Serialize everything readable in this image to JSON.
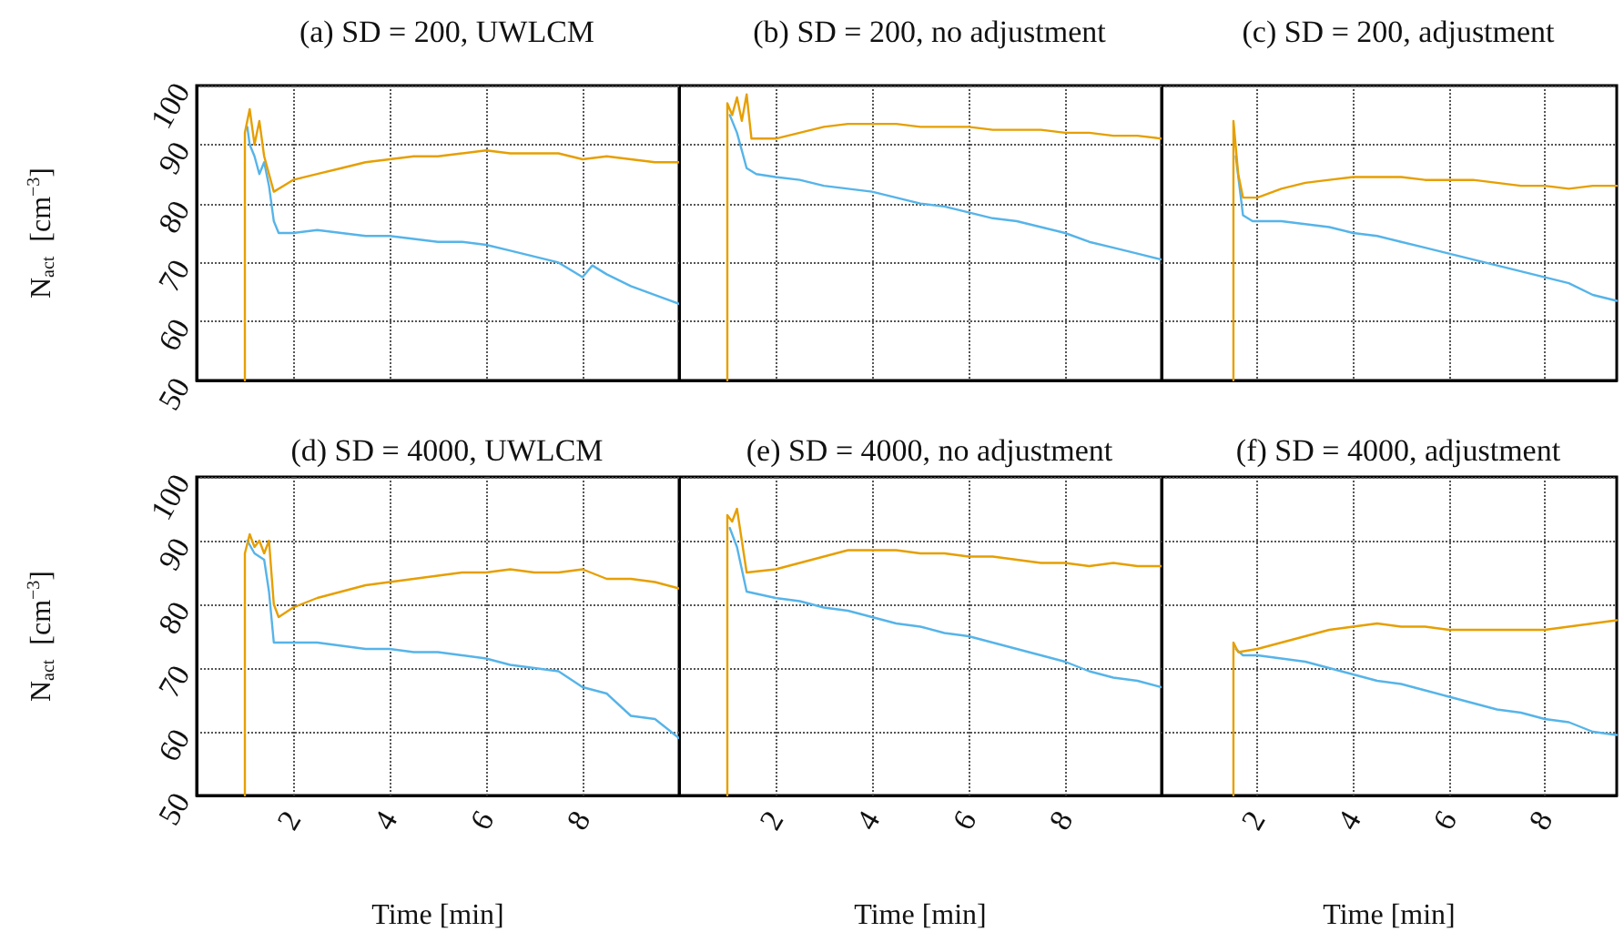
{
  "chart_data": [
    {
      "type": "line",
      "title": "(a) SD = 200, UWLCM",
      "ylabel": "N$_{act}$  [cm$^{−3}$]",
      "xlim": [
        0,
        10
      ],
      "ylim": [
        50,
        100
      ],
      "xticks": [
        2,
        4,
        6,
        8
      ],
      "yticks": [
        50,
        60,
        70,
        80,
        90,
        100
      ],
      "grid": true,
      "tick_labels": "y",
      "line_style": "solid",
      "series": [
        {
          "color": "#56b4e9",
          "x": [
            1.05,
            1.1,
            1.2,
            1.3,
            1.4,
            1.5,
            1.6,
            1.7,
            2,
            2.5,
            3,
            3.5,
            4,
            4.5,
            5,
            5.5,
            6,
            6.5,
            7,
            7.5,
            8,
            8.2,
            8.5,
            9,
            9.5,
            10
          ],
          "values": [
            93,
            90,
            88,
            85,
            87,
            83,
            77,
            75,
            75,
            75.5,
            75,
            74.5,
            74.5,
            74,
            73.5,
            73.5,
            73,
            72,
            71,
            70,
            67.5,
            69.5,
            68,
            66,
            64.5,
            63
          ]
        },
        {
          "color": "#e69f00",
          "x": [
            1.0,
            1.0,
            1.1,
            1.2,
            1.3,
            1.4,
            1.6,
            1.8,
            2,
            2.5,
            3,
            3.5,
            4,
            4.5,
            5,
            5.5,
            6,
            6.5,
            7,
            7.5,
            8,
            8.5,
            9,
            9.5,
            10
          ],
          "values": [
            50,
            92,
            96,
            90,
            94,
            88,
            82,
            83,
            84,
            85,
            86,
            87,
            87.5,
            88,
            88,
            88.5,
            89,
            88.5,
            88.5,
            88.5,
            87.5,
            88,
            87.5,
            87,
            87
          ]
        }
      ]
    },
    {
      "type": "line",
      "title": "(b) SD = 200, no adjustment",
      "xlim": [
        0,
        10
      ],
      "ylim": [
        50,
        100
      ],
      "xticks": [
        2,
        4,
        6,
        8
      ],
      "yticks": [
        50,
        60,
        70,
        80,
        90,
        100
      ],
      "grid": true,
      "tick_labels": false,
      "line_style": "solid",
      "series": [
        {
          "color": "#56b4e9",
          "x": [
            1.05,
            1.2,
            1.4,
            1.6,
            2,
            2.5,
            3,
            3.5,
            4,
            4.5,
            5,
            5.5,
            6,
            6.5,
            7,
            7.5,
            8,
            8.5,
            9,
            9.5,
            10
          ],
          "values": [
            95,
            92,
            86,
            85,
            84.5,
            84,
            83,
            82.5,
            82,
            81,
            80,
            79.5,
            78.5,
            77.5,
            77,
            76,
            75,
            73.5,
            72.5,
            71.5,
            70.5
          ]
        },
        {
          "color": "#e69f00",
          "x": [
            1.0,
            1.0,
            1.1,
            1.2,
            1.3,
            1.4,
            1.5,
            2,
            2.5,
            3,
            3.5,
            4,
            4.5,
            5,
            5.5,
            6,
            6.5,
            7,
            7.5,
            8,
            8.5,
            9,
            9.5,
            10
          ],
          "values": [
            50,
            97,
            95,
            98,
            94,
            98.5,
            91,
            91,
            92,
            93,
            93.5,
            93.5,
            93.5,
            93,
            93,
            93,
            92.5,
            92.5,
            92.5,
            92,
            92,
            91.5,
            91.5,
            91
          ]
        }
      ]
    },
    {
      "type": "line",
      "title": "(c) SD = 200, adjustment",
      "xlim": [
        0,
        9.5
      ],
      "ylim": [
        50,
        100
      ],
      "xticks": [
        2,
        4,
        6,
        8
      ],
      "yticks": [
        50,
        60,
        70,
        80,
        90,
        100
      ],
      "grid": true,
      "tick_labels": false,
      "line_style": "solid",
      "series": [
        {
          "color": "#56b4e9",
          "x": [
            1.55,
            1.7,
            1.9,
            2,
            2.5,
            3,
            3.5,
            4,
            4.5,
            5,
            5.5,
            6,
            6.5,
            7,
            7.5,
            8,
            8.5,
            9,
            9.5
          ],
          "values": [
            88,
            78,
            77,
            77,
            77,
            76.5,
            76,
            75,
            74.5,
            73.5,
            72.5,
            71.5,
            70.5,
            69.5,
            68.5,
            67.5,
            66.5,
            64.5,
            63.5
          ]
        },
        {
          "color": "#e69f00",
          "x": [
            1.5,
            1.5,
            1.6,
            1.7,
            2,
            2.5,
            3,
            3.5,
            4,
            4.5,
            5,
            5.5,
            6,
            6.5,
            7,
            7.5,
            8,
            8.5,
            9,
            9.5
          ],
          "values": [
            50,
            94,
            85,
            81,
            81,
            82.5,
            83.5,
            84,
            84.5,
            84.5,
            84.5,
            84,
            84,
            84,
            83.5,
            83,
            83,
            82.5,
            83,
            83
          ]
        }
      ]
    },
    {
      "type": "line",
      "title": "(d) SD = 4000, UWLCM",
      "xlabel": "Time [min]",
      "ylabel": "N$_{act}$  [cm$^{−3}$]",
      "xlim": [
        0,
        10
      ],
      "ylim": [
        50,
        100
      ],
      "xticks": [
        2,
        4,
        6,
        8
      ],
      "yticks": [
        50,
        60,
        70,
        80,
        90,
        100
      ],
      "grid": true,
      "line_style": "solid",
      "series": [
        {
          "color": "#56b4e9",
          "x": [
            1.05,
            1.2,
            1.4,
            1.5,
            1.6,
            2,
            2.5,
            3,
            3.5,
            4,
            4.5,
            5,
            5.5,
            6,
            6.5,
            7,
            7.5,
            8,
            8.5,
            9,
            9.5,
            10
          ],
          "values": [
            90,
            88,
            87,
            82,
            74,
            74,
            74,
            73.5,
            73,
            73,
            72.5,
            72.5,
            72,
            71.5,
            70.5,
            70,
            69.5,
            67,
            66,
            62.5,
            62,
            59
          ]
        },
        {
          "color": "#e69f00",
          "x": [
            1.0,
            1.0,
            1.1,
            1.2,
            1.3,
            1.4,
            1.5,
            1.6,
            1.7,
            2,
            2.5,
            3,
            3.5,
            4,
            4.5,
            5,
            5.5,
            6,
            6.5,
            7,
            7.5,
            8,
            8.5,
            9,
            9.5,
            10
          ],
          "values": [
            50,
            88,
            91,
            89,
            90,
            88,
            90,
            80,
            78,
            79.5,
            81,
            82,
            83,
            83.5,
            84,
            84.5,
            85,
            85,
            85.5,
            85,
            85,
            85.5,
            84,
            84,
            83.5,
            82.5
          ]
        }
      ]
    },
    {
      "type": "line",
      "title": "(e) SD = 4000, no adjustment",
      "xlabel": "Time [min]",
      "xlim": [
        0,
        10
      ],
      "ylim": [
        50,
        100
      ],
      "xticks": [
        2,
        4,
        6,
        8
      ],
      "yticks": [
        50,
        60,
        70,
        80,
        90,
        100
      ],
      "grid": true,
      "tick_labels": "x",
      "line_style": "solid",
      "series": [
        {
          "color": "#56b4e9",
          "x": [
            1.05,
            1.2,
            1.4,
            2,
            2.5,
            3,
            3.5,
            4,
            4.5,
            5,
            5.5,
            6,
            6.5,
            7,
            7.5,
            8,
            8.5,
            9,
            9.5,
            10
          ],
          "values": [
            92,
            89,
            82,
            81,
            80.5,
            79.5,
            79,
            78,
            77,
            76.5,
            75.5,
            75,
            74,
            73,
            72,
            71,
            69.5,
            68.5,
            68,
            67
          ]
        },
        {
          "color": "#e69f00",
          "x": [
            1.0,
            1.0,
            1.1,
            1.2,
            1.3,
            1.4,
            2,
            2.5,
            3,
            3.5,
            4,
            4.5,
            5,
            5.5,
            6,
            6.5,
            7,
            7.5,
            8,
            8.5,
            9,
            9.5,
            10
          ],
          "values": [
            50,
            94,
            93,
            95,
            90,
            85,
            85.5,
            86.5,
            87.5,
            88.5,
            88.5,
            88.5,
            88,
            88,
            87.5,
            87.5,
            87,
            86.5,
            86.5,
            86,
            86.5,
            86,
            86
          ]
        }
      ]
    },
    {
      "type": "line",
      "title": "(f) SD = 4000, adjustment",
      "xlabel": "Time [min]",
      "xlim": [
        0,
        9.5
      ],
      "ylim": [
        50,
        100
      ],
      "xticks": [
        2,
        4,
        6,
        8
      ],
      "yticks": [
        50,
        60,
        70,
        80,
        90,
        100
      ],
      "grid": true,
      "tick_labels": "x",
      "line_style": "solid",
      "series": [
        {
          "color": "#56b4e9",
          "x": [
            1.55,
            1.7,
            2,
            2.5,
            3,
            3.5,
            4,
            4.5,
            5,
            5.5,
            6,
            6.5,
            7,
            7.5,
            8,
            8.5,
            9,
            9.5
          ],
          "values": [
            73,
            72,
            72,
            71.5,
            71,
            70,
            69,
            68,
            67.5,
            66.5,
            65.5,
            64.5,
            63.5,
            63,
            62,
            61.5,
            60,
            59.5
          ]
        },
        {
          "color": "#e69f00",
          "x": [
            1.5,
            1.5,
            1.6,
            2,
            2.5,
            3,
            3.5,
            4,
            4.5,
            5,
            5.5,
            6,
            6.5,
            7,
            7.5,
            8,
            8.5,
            9,
            9.5
          ],
          "values": [
            50,
            74,
            72.5,
            73,
            74,
            75,
            76,
            76.5,
            77,
            76.5,
            76.5,
            76,
            76,
            76,
            76,
            76,
            76.5,
            77,
            77.5
          ]
        }
      ]
    }
  ]
}
